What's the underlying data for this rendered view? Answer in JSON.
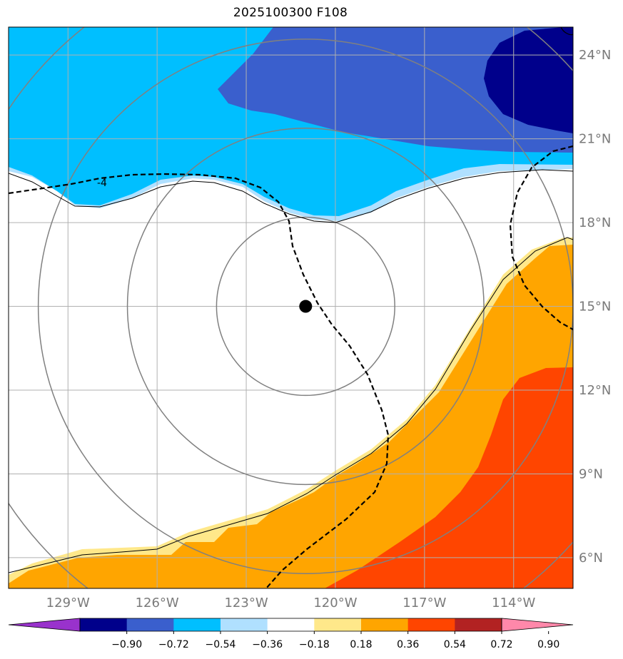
{
  "title": "2025100300 F108",
  "map": {
    "lon_range": [
      -131.0,
      -112.0
    ],
    "lat_range": [
      4.9,
      25.0
    ],
    "storm_center": {
      "lon": -121.0,
      "lat": 15.0
    },
    "range_rings_deg": [
      3,
      6,
      9,
      12
    ],
    "lon_ticks": [
      {
        "value": -129,
        "label": "129°W"
      },
      {
        "value": -126,
        "label": "126°W"
      },
      {
        "value": -123,
        "label": "123°W"
      },
      {
        "value": -120,
        "label": "120°W"
      },
      {
        "value": -117,
        "label": "117°W"
      },
      {
        "value": -114,
        "label": "114°W"
      }
    ],
    "lat_ticks": [
      {
        "value": 6,
        "label": "6°N"
      },
      {
        "value": 9,
        "label": "9°N"
      },
      {
        "value": 12,
        "label": "12°N"
      },
      {
        "value": 15,
        "label": "15°N"
      },
      {
        "value": 18,
        "label": "18°N"
      },
      {
        "value": 21,
        "label": "21°N"
      },
      {
        "value": 24,
        "label": "24°N"
      }
    ],
    "contour_label": "-4"
  },
  "colorbar": {
    "colors": [
      "#9932cc",
      "#00008b",
      "#3a5fcd",
      "#00bfff",
      "#b0e0ff",
      "#ffffff",
      "#ffe88a",
      "#ffa500",
      "#ff4500",
      "#b22222",
      "#ff88aa"
    ],
    "tick_labels": [
      "−0.90",
      "−0.72",
      "−0.54",
      "−0.36",
      "−0.18",
      "0.18",
      "0.36",
      "0.54",
      "0.72",
      "0.90"
    ]
  },
  "colors": {
    "navy": "#00008b",
    "royal": "#3a5fcd",
    "sky": "#00bfff",
    "pale": "#b0e0ff",
    "lightyellow": "#ffe88a",
    "orange": "#ffa500",
    "redorange": "#ff4500",
    "grid": "#b0b0b0",
    "ring": "#808080"
  }
}
